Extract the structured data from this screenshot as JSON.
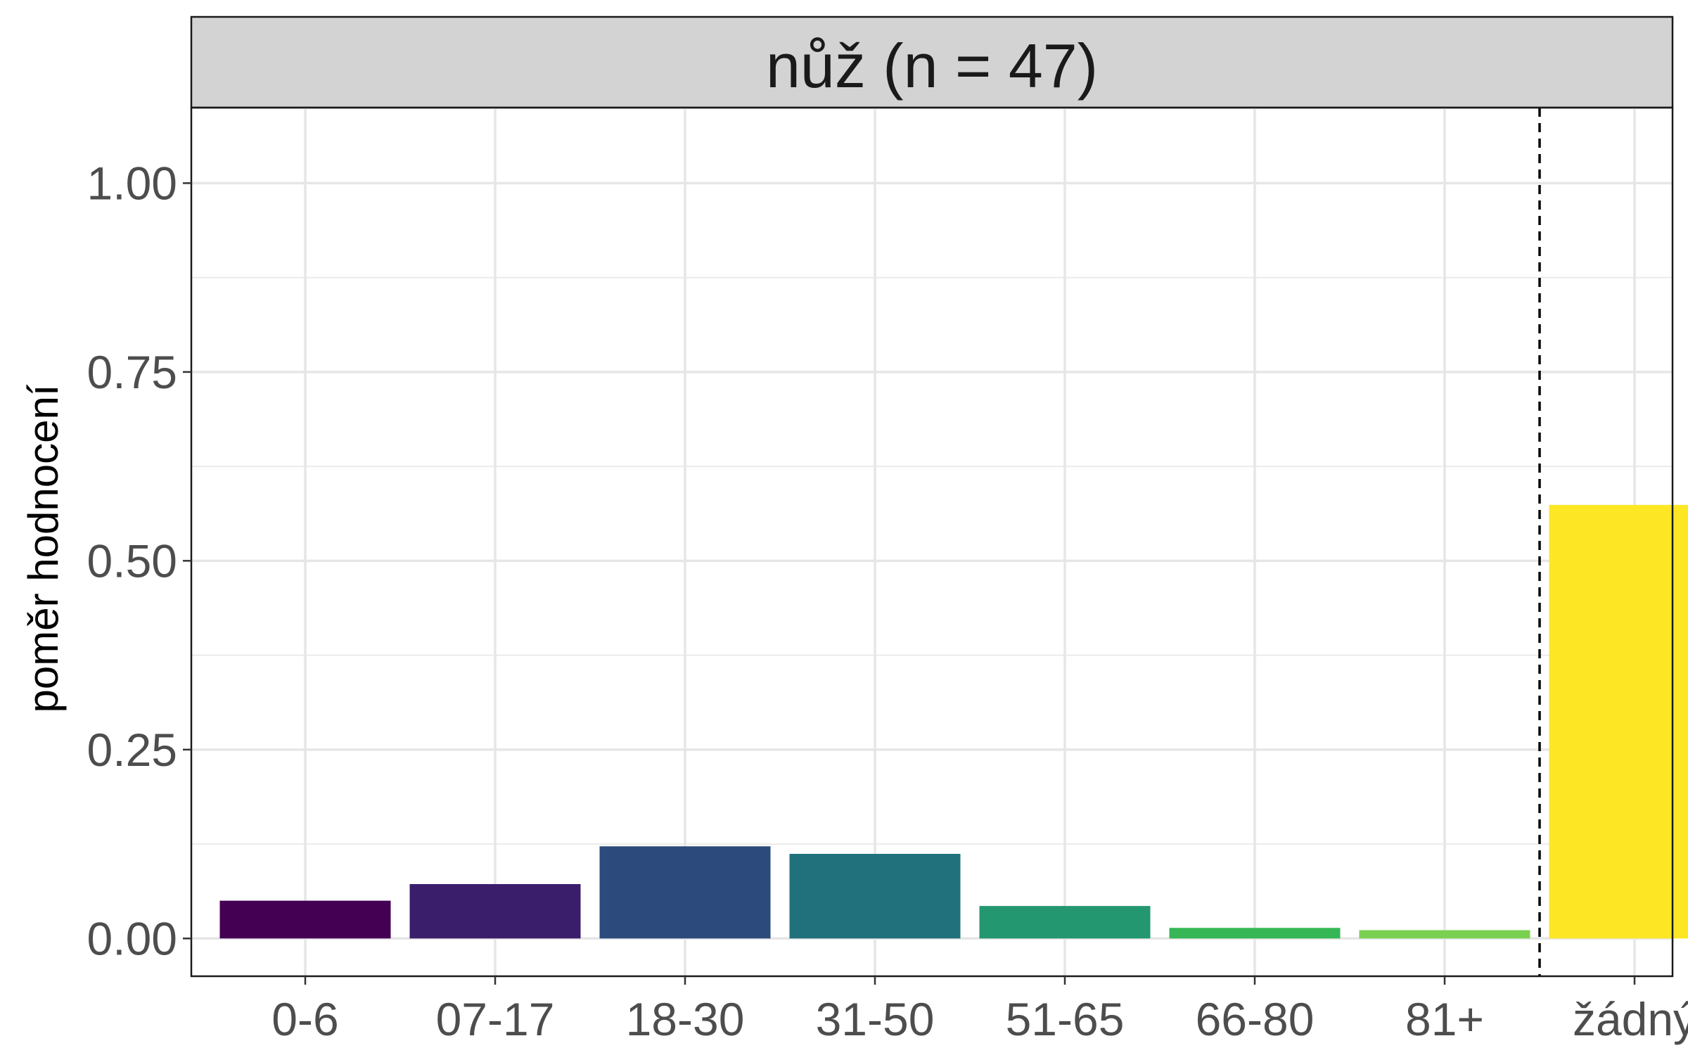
{
  "chart_data": {
    "type": "bar",
    "facet_title": "nůž (n = 47)",
    "ylabel": "poměr hodnocení",
    "xlabel": "",
    "categories": [
      "0-6",
      "07-17",
      "18-30",
      "31-50",
      "51-65",
      "66-80",
      "81+",
      "žádný"
    ],
    "values": [
      0.05,
      0.072,
      0.122,
      0.112,
      0.043,
      0.014,
      0.011,
      0.574
    ],
    "colors": [
      "#440154",
      "#3b1e6b",
      "#2c4a7b",
      "#21717d",
      "#23976f",
      "#36b655",
      "#7ad151",
      "#fde725"
    ],
    "ylim": [
      -0.05,
      1.1
    ],
    "yticks": [
      0.0,
      0.25,
      0.5,
      0.75,
      1.0
    ],
    "ytick_labels": [
      "0.00",
      "0.25",
      "0.50",
      "0.75",
      "1.00"
    ],
    "reference_line": {
      "between": [
        "81+",
        "žádný"
      ],
      "style": "dashed"
    },
    "grid": true,
    "legend": "none"
  }
}
